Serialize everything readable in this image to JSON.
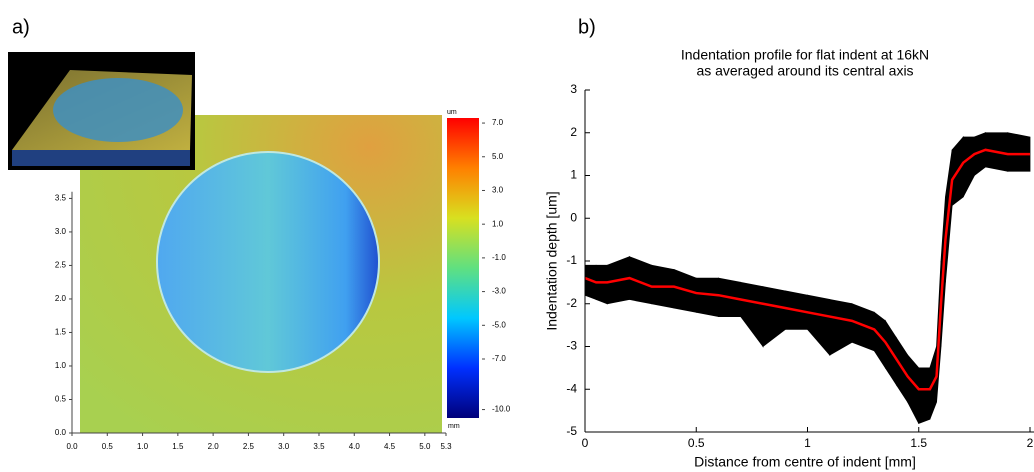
{
  "labels": [
    "a)",
    "b)"
  ],
  "chart_data": [
    {
      "type": "heatmap",
      "xlim": [
        0,
        5.3
      ],
      "xticks": [
        {
          "value": 0,
          "label": "0.0"
        },
        {
          "value": 0.5,
          "label": "0.5"
        },
        {
          "value": 1,
          "label": "1.0"
        },
        {
          "value": 1.5,
          "label": "1.5"
        },
        {
          "value": 2,
          "label": "2.0"
        },
        {
          "value": 2.5,
          "label": "2.5"
        },
        {
          "value": 3,
          "label": "3.0"
        },
        {
          "value": 3.5,
          "label": "3.5"
        },
        {
          "value": 4,
          "label": "4.0"
        },
        {
          "value": 4.5,
          "label": "4.5"
        },
        {
          "value": 5,
          "label": "5.0"
        },
        5.3
      ],
      "ylim": [
        0,
        4.7
      ],
      "yticks": [
        {
          "value": 0,
          "label": "0.0"
        },
        {
          "value": 0.5,
          "label": "0.5"
        },
        {
          "value": 1,
          "label": "1.0"
        },
        {
          "value": 1.5,
          "label": "1.5"
        },
        {
          "value": 2,
          "label": "2.0"
        },
        {
          "value": 2.5,
          "label": "2.5"
        },
        {
          "value": 3,
          "label": "3.0"
        },
        {
          "value": 3.5,
          "label": "3.5"
        }
      ],
      "x_unit": "mm",
      "colorbar": {
        "unit": "um",
        "lim": [
          -10.5,
          7.3
        ],
        "ticks": [
          {
            "value": 7,
            "label": "7.0"
          },
          {
            "value": 5,
            "label": "5.0"
          },
          {
            "value": 3,
            "label": "3.0"
          },
          {
            "value": 1,
            "label": "1.0"
          },
          {
            "value": -1,
            "label": "-1.0"
          },
          {
            "value": -3,
            "label": "-3.0"
          },
          {
            "value": -5,
            "label": "-5.0"
          },
          {
            "value": -7,
            "label": "-7.0"
          },
          {
            "value": -10,
            "label": "-10.0"
          }
        ],
        "colors": [
          "#00007a",
          "#0030ff",
          "#00c8ff",
          "#60e080",
          "#d8e020",
          "#ff8000",
          "#ff0000"
        ]
      }
    },
    {
      "type": "line",
      "title": [
        "Indentation profile for flat indent at 16kN",
        "as averaged around its central axis"
      ],
      "xlabel": "Distance from centre of indent [mm]",
      "ylabel": "Indentation depth [um]",
      "xlim": [
        0,
        2
      ],
      "xticks": [
        0,
        0.5,
        1,
        1.5,
        2
      ],
      "ylim": [
        -5,
        3
      ],
      "yticks": [
        -5,
        -4,
        -3,
        -2,
        -1,
        0,
        1,
        2,
        3
      ],
      "x": [
        0,
        0.05,
        0.1,
        0.2,
        0.3,
        0.4,
        0.5,
        0.6,
        0.7,
        0.8,
        0.9,
        1.0,
        1.1,
        1.2,
        1.3,
        1.35,
        1.4,
        1.45,
        1.5,
        1.55,
        1.58,
        1.6,
        1.62,
        1.65,
        1.7,
        1.75,
        1.8,
        1.9,
        2.0
      ],
      "series": [
        {
          "color": "#ff0000",
          "values": [
            -1.4,
            -1.5,
            -1.5,
            -1.4,
            -1.6,
            -1.6,
            -1.75,
            -1.8,
            -1.9,
            -2.0,
            -2.1,
            -2.2,
            -2.3,
            -2.4,
            -2.6,
            -2.9,
            -3.3,
            -3.7,
            -4.0,
            -4.0,
            -3.7,
            -2.0,
            -0.5,
            0.9,
            1.3,
            1.5,
            1.6,
            1.5,
            1.5
          ]
        }
      ],
      "band": {
        "color": "#000000",
        "upper": [
          -1.1,
          -1.1,
          -1.1,
          -0.9,
          -1.1,
          -1.2,
          -1.4,
          -1.4,
          -1.5,
          -1.6,
          -1.7,
          -1.8,
          -1.9,
          -2.0,
          -2.2,
          -2.4,
          -2.8,
          -3.2,
          -3.5,
          -3.5,
          -3.0,
          -1.0,
          0.5,
          1.6,
          1.9,
          1.9,
          2.0,
          2.0,
          1.9
        ],
        "lower": [
          -1.8,
          -1.9,
          -2.0,
          -1.9,
          -2.0,
          -2.1,
          -2.2,
          -2.3,
          -2.3,
          -3.0,
          -2.6,
          -2.6,
          -3.2,
          -2.9,
          -3.1,
          -3.5,
          -3.9,
          -4.3,
          -4.8,
          -4.7,
          -4.3,
          -3.0,
          -1.5,
          0.3,
          0.5,
          1.0,
          1.2,
          1.1,
          1.1
        ]
      }
    }
  ]
}
